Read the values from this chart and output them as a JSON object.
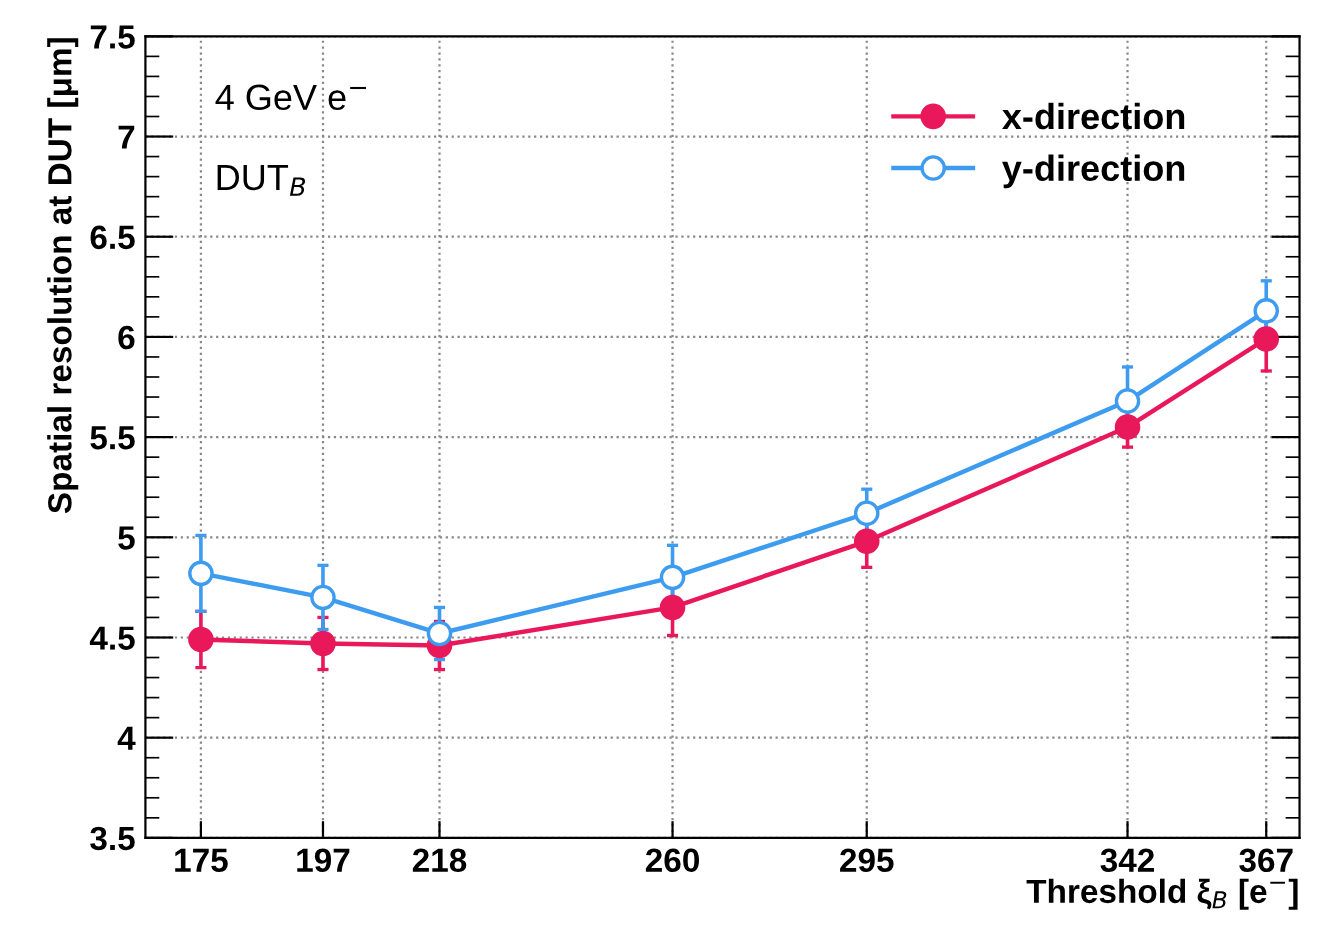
{
  "chart_data": {
    "type": "line",
    "xlabel": "Threshold ξ$_{B}$ [e$^{−}$]",
    "ylabel": "Spatial resolution at DUT [μm]",
    "annotations": [
      "4 GeV e$^{−}$",
      "DUT$_{B}$"
    ],
    "x": [
      175,
      197,
      218,
      260,
      295,
      342,
      367
    ],
    "xlim": [
      165,
      373
    ],
    "xticks": [
      175,
      197,
      218,
      260,
      295,
      342,
      367
    ],
    "ylim": [
      3.5,
      7.5
    ],
    "yticks": [
      3.5,
      4,
      4.5,
      5,
      5.5,
      6,
      6.5,
      7,
      7.5
    ],
    "series": [
      {
        "name": "x-direction",
        "color": "#e8185a",
        "values": [
          4.49,
          4.47,
          4.46,
          4.65,
          4.98,
          5.55,
          5.99
        ],
        "errors": [
          0.14,
          0.13,
          0.12,
          0.14,
          0.13,
          0.1,
          0.16
        ]
      },
      {
        "name": "y-direction",
        "color": "#3d9bf0",
        "values": [
          4.82,
          4.7,
          4.52,
          4.8,
          5.12,
          5.68,
          6.13
        ],
        "errors": [
          0.19,
          0.16,
          0.13,
          0.16,
          0.12,
          0.17,
          0.15
        ]
      }
    ],
    "marker": "circle",
    "line_style": "solid",
    "grid": true,
    "legend": "top right"
  }
}
